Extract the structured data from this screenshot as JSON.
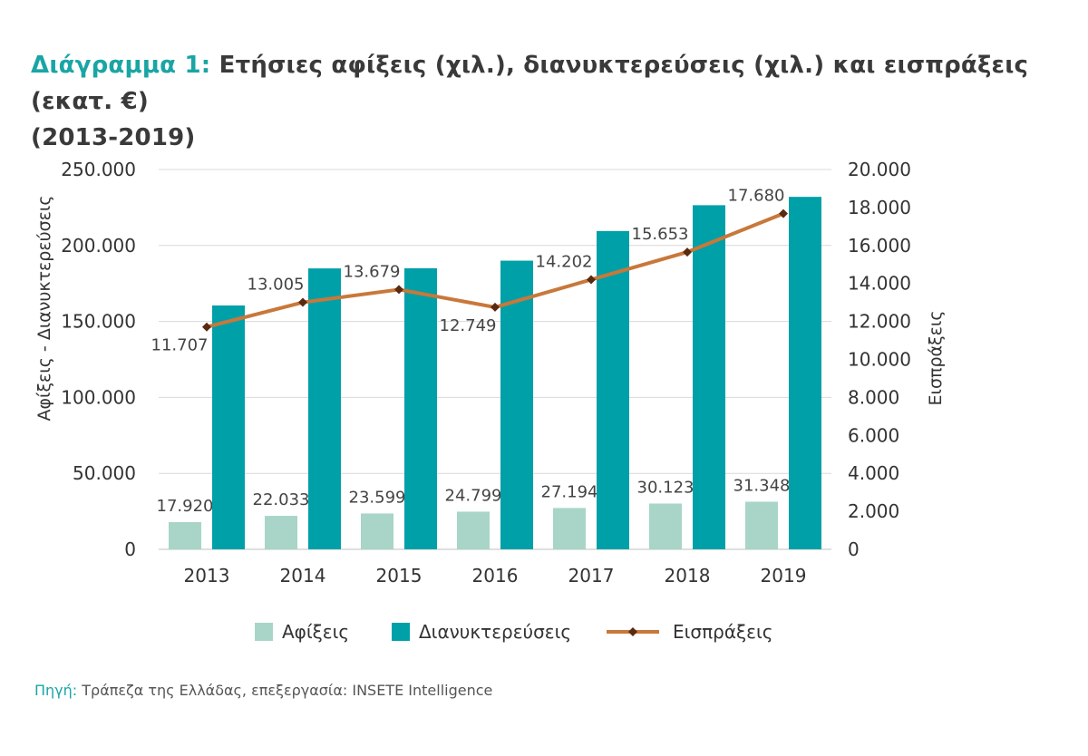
{
  "title": {
    "prefix": "Διάγραμμα 1:",
    "line1": "Ετήσιες αφίξεις (χιλ.), διανυκτερεύσεις (χιλ.) και εισπράξεις (εκατ. €)",
    "line2": "(2013-2019)"
  },
  "source": {
    "prefix": "Πηγή:",
    "text": "Τράπεζα της Ελλάδας, επεξεργασία: INSETE Intelligence"
  },
  "colors": {
    "arrivals": "#a8d5c8",
    "overnights": "#00a0a8",
    "receipts": "#c8783a",
    "marker": "#5a2a10",
    "grid": "#d9d9d9",
    "accent": "#1aa5a5"
  },
  "chart_data": {
    "type": "bar",
    "categories": [
      "2013",
      "2014",
      "2015",
      "2016",
      "2017",
      "2018",
      "2019"
    ],
    "ylabel": "Αφίξεις - Διανυκτερεύσεις",
    "y2label": "Εισπράξεις",
    "ylim": [
      0,
      250000
    ],
    "y2lim": [
      0,
      20000
    ],
    "yticks": [
      "0",
      "50.000",
      "100.000",
      "150.000",
      "200.000",
      "250.000"
    ],
    "y2ticks": [
      "0",
      "2.000",
      "4.000",
      "6.000",
      "8.000",
      "10.000",
      "12.000",
      "14.000",
      "16.000",
      "18.000",
      "20.000"
    ],
    "grid": true,
    "legend_position": "bottom",
    "series": [
      {
        "name": "Αφίξεις",
        "type": "bar",
        "axis": "left",
        "values": [
          17920,
          22033,
          23599,
          24799,
          27194,
          30123,
          31348
        ],
        "labels": [
          "17.920",
          "22.033",
          "23.599",
          "24.799",
          "27.194",
          "30.123",
          "31.348"
        ]
      },
      {
        "name": "Διανυκτερεύσεις",
        "type": "bar",
        "axis": "left",
        "values": [
          160500,
          184900,
          185000,
          190000,
          209500,
          226500,
          232000
        ]
      },
      {
        "name": "Εισπράξεις",
        "type": "line",
        "axis": "right",
        "values": [
          11707,
          13005,
          13679,
          12749,
          14202,
          15653,
          17680
        ],
        "labels": [
          "11.707",
          "13.005",
          "13.679",
          "12.749",
          "14.202",
          "15.653",
          "17.680"
        ]
      }
    ]
  }
}
